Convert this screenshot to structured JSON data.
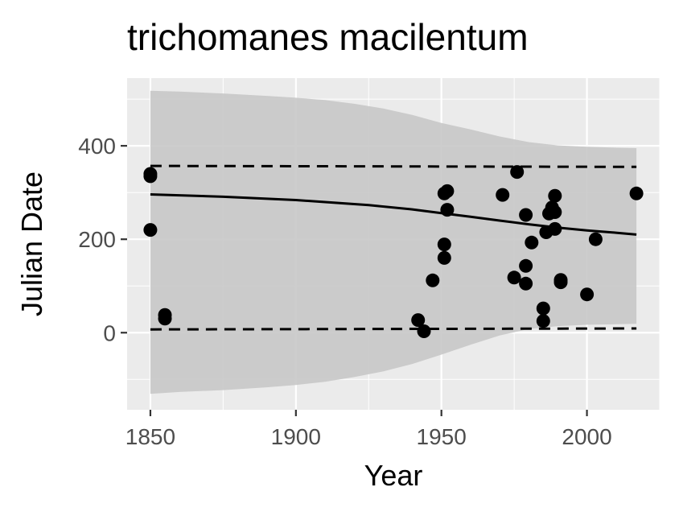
{
  "chart_data": {
    "type": "scatter",
    "title": "trichomanes macilentum",
    "xlabel": "Year",
    "ylabel": "Julian Date",
    "xlim": [
      1842,
      2025
    ],
    "ylim": [
      -165,
      545
    ],
    "x_ticks": [
      1850,
      1900,
      1950,
      2000
    ],
    "x_tick_labels": [
      "1850",
      "1900",
      "1950",
      "2000"
    ],
    "y_ticks": [
      0,
      200,
      400
    ],
    "y_tick_labels": [
      "0",
      "200",
      "400"
    ],
    "grid": true,
    "points": [
      {
        "x": 1850,
        "y": 340
      },
      {
        "x": 1850,
        "y": 335
      },
      {
        "x": 1850,
        "y": 220
      },
      {
        "x": 1855,
        "y": 38
      },
      {
        "x": 1855,
        "y": 30
      },
      {
        "x": 1942,
        "y": 27
      },
      {
        "x": 1944,
        "y": 3
      },
      {
        "x": 1947,
        "y": 112
      },
      {
        "x": 1951,
        "y": 298
      },
      {
        "x": 1952,
        "y": 303
      },
      {
        "x": 1952,
        "y": 263
      },
      {
        "x": 1951,
        "y": 189
      },
      {
        "x": 1951,
        "y": 160
      },
      {
        "x": 1971,
        "y": 295
      },
      {
        "x": 1975,
        "y": 118
      },
      {
        "x": 1976,
        "y": 344
      },
      {
        "x": 1979,
        "y": 252
      },
      {
        "x": 1979,
        "y": 143
      },
      {
        "x": 1979,
        "y": 105
      },
      {
        "x": 1981,
        "y": 193
      },
      {
        "x": 1985,
        "y": 52
      },
      {
        "x": 1985,
        "y": 25
      },
      {
        "x": 1986,
        "y": 215
      },
      {
        "x": 1987,
        "y": 255
      },
      {
        "x": 1988,
        "y": 268
      },
      {
        "x": 1989,
        "y": 293
      },
      {
        "x": 1989,
        "y": 258
      },
      {
        "x": 1989,
        "y": 222
      },
      {
        "x": 1991,
        "y": 113
      },
      {
        "x": 1991,
        "y": 108
      },
      {
        "x": 2000,
        "y": 82
      },
      {
        "x": 2003,
        "y": 200
      },
      {
        "x": 2017,
        "y": 298
      }
    ],
    "fit_line": {
      "x": [
        1850,
        1875,
        1900,
        1925,
        1940,
        1950,
        1960,
        1970,
        1980,
        1990,
        2000,
        2010,
        2017
      ],
      "y": [
        296,
        291,
        284,
        273,
        264,
        256,
        248,
        240,
        232,
        225,
        219,
        214,
        210
      ]
    },
    "ribbon": {
      "x": [
        1850,
        1860,
        1875,
        1890,
        1900,
        1910,
        1920,
        1930,
        1940,
        1950,
        1960,
        1970,
        1980,
        1990,
        2000,
        2010,
        2017
      ],
      "upper": [
        518,
        516,
        512,
        507,
        503,
        498,
        490,
        480,
        466,
        449,
        435,
        420,
        408,
        401,
        398,
        396,
        395
      ],
      "lower": [
        -131,
        -127,
        -123,
        -117,
        -112,
        -105,
        -95,
        -83,
        -67,
        -47,
        -26,
        -6,
        8,
        14,
        17,
        18,
        19
      ]
    },
    "upper_bound_line": {
      "x": [
        1850,
        2017
      ],
      "y": [
        357,
        355
      ]
    },
    "lower_bound_line": {
      "x": [
        1850,
        2017
      ],
      "y": [
        7,
        9
      ]
    },
    "colors": {
      "panel": "#ebebeb",
      "grid": "#ffffff",
      "ribbon": "#c8c8c8",
      "points": "#000000",
      "lines": "#000000",
      "tick_text": "#4d4d4d",
      "tick_mark": "#333333"
    }
  }
}
